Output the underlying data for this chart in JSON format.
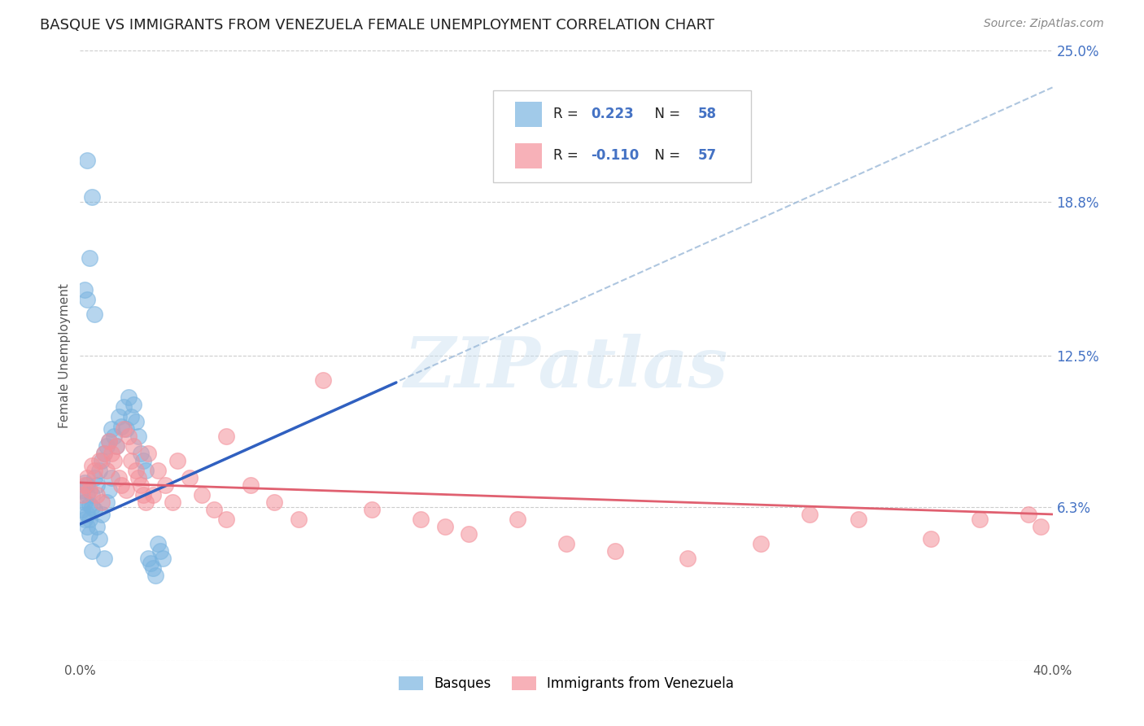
{
  "title": "BASQUE VS IMMIGRANTS FROM VENEZUELA FEMALE UNEMPLOYMENT CORRELATION CHART",
  "source": "Source: ZipAtlas.com",
  "ylabel": "Female Unemployment",
  "x_min": 0.0,
  "x_max": 0.4,
  "y_min": 0.0,
  "y_max": 0.25,
  "y_ticks_right": [
    0.0,
    0.063,
    0.125,
    0.188,
    0.25
  ],
  "y_tick_labels_right": [
    "",
    "6.3%",
    "12.5%",
    "18.8%",
    "25.0%"
  ],
  "basque_color": "#7ab4e0",
  "venezuela_color": "#f4909a",
  "basque_line_color": "#3060c0",
  "venezuela_line_color": "#e06070",
  "dashed_line_color": "#9ab8d8",
  "basque_R": "0.223",
  "basque_N": "58",
  "venezuela_R": "-0.110",
  "venezuela_N": "57",
  "legend_label_basque": "Basques",
  "legend_label_venezuela": "Immigrants from Venezuela",
  "watermark": "ZIPatlas",
  "background_color": "#ffffff",
  "grid_color": "#c8c8c8",
  "basque_scatter_x": [
    0.001,
    0.001,
    0.002,
    0.002,
    0.002,
    0.003,
    0.003,
    0.003,
    0.003,
    0.004,
    0.004,
    0.004,
    0.005,
    0.005,
    0.005,
    0.006,
    0.006,
    0.007,
    0.007,
    0.008,
    0.008,
    0.009,
    0.009,
    0.01,
    0.01,
    0.011,
    0.011,
    0.012,
    0.012,
    0.013,
    0.013,
    0.014,
    0.015,
    0.016,
    0.017,
    0.018,
    0.019,
    0.02,
    0.021,
    0.022,
    0.023,
    0.024,
    0.025,
    0.026,
    0.027,
    0.028,
    0.029,
    0.03,
    0.031,
    0.032,
    0.033,
    0.034,
    0.002,
    0.003,
    0.004,
    0.003,
    0.005,
    0.006
  ],
  "basque_scatter_y": [
    0.062,
    0.07,
    0.065,
    0.073,
    0.058,
    0.06,
    0.068,
    0.072,
    0.055,
    0.064,
    0.058,
    0.052,
    0.068,
    0.063,
    0.045,
    0.075,
    0.062,
    0.072,
    0.055,
    0.078,
    0.05,
    0.082,
    0.06,
    0.085,
    0.042,
    0.088,
    0.065,
    0.09,
    0.07,
    0.095,
    0.075,
    0.092,
    0.088,
    0.1,
    0.096,
    0.104,
    0.095,
    0.108,
    0.1,
    0.105,
    0.098,
    0.092,
    0.085,
    0.082,
    0.078,
    0.042,
    0.04,
    0.038,
    0.035,
    0.048,
    0.045,
    0.042,
    0.152,
    0.148,
    0.165,
    0.205,
    0.19,
    0.142
  ],
  "venezuela_scatter_x": [
    0.001,
    0.002,
    0.003,
    0.004,
    0.005,
    0.006,
    0.007,
    0.008,
    0.009,
    0.01,
    0.011,
    0.012,
    0.013,
    0.014,
    0.015,
    0.016,
    0.017,
    0.018,
    0.019,
    0.02,
    0.021,
    0.022,
    0.023,
    0.024,
    0.025,
    0.026,
    0.027,
    0.028,
    0.03,
    0.032,
    0.035,
    0.038,
    0.04,
    0.045,
    0.05,
    0.055,
    0.06,
    0.07,
    0.08,
    0.09,
    0.1,
    0.12,
    0.14,
    0.15,
    0.16,
    0.18,
    0.2,
    0.22,
    0.25,
    0.28,
    0.3,
    0.32,
    0.35,
    0.37,
    0.39,
    0.395,
    0.06
  ],
  "venezuela_scatter_y": [
    0.068,
    0.072,
    0.075,
    0.07,
    0.08,
    0.078,
    0.068,
    0.082,
    0.065,
    0.085,
    0.078,
    0.09,
    0.085,
    0.082,
    0.088,
    0.075,
    0.072,
    0.095,
    0.07,
    0.092,
    0.082,
    0.088,
    0.078,
    0.075,
    0.072,
    0.068,
    0.065,
    0.085,
    0.068,
    0.078,
    0.072,
    0.065,
    0.082,
    0.075,
    0.068,
    0.062,
    0.058,
    0.072,
    0.065,
    0.058,
    0.115,
    0.062,
    0.058,
    0.055,
    0.052,
    0.058,
    0.048,
    0.045,
    0.042,
    0.048,
    0.06,
    0.058,
    0.05,
    0.058,
    0.06,
    0.055,
    0.092
  ],
  "basque_line_x0": 0.0,
  "basque_line_y0": 0.056,
  "basque_line_x1": 0.13,
  "basque_line_y1": 0.114,
  "dashed_line_x0": 0.0,
  "dashed_line_y0": 0.056,
  "dashed_line_x1": 0.4,
  "dashed_line_y1": 0.235,
  "venezuela_line_x0": 0.0,
  "venezuela_line_y0": 0.073,
  "venezuela_line_x1": 0.4,
  "venezuela_line_y1": 0.06
}
